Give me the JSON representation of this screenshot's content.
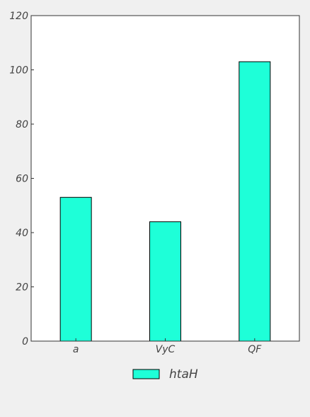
{
  "colors": {
    "background": "#f0f0f0",
    "plot_background": "#ffffff",
    "bar_fill": "#1effd8",
    "bar_stroke": "#000000",
    "tick_text": "#444444"
  },
  "chart_data": {
    "type": "bar",
    "categories": [
      "a",
      "VyC",
      "QF"
    ],
    "series": [
      {
        "name": "htaH",
        "values": [
          53,
          44,
          103
        ]
      }
    ],
    "ylim": [
      0,
      120
    ],
    "yticks": [
      0,
      20,
      40,
      60,
      80,
      100,
      120
    ],
    "xlabel": "",
    "ylabel": "",
    "title": "",
    "grid": false,
    "legend_position": "bottom-center"
  }
}
